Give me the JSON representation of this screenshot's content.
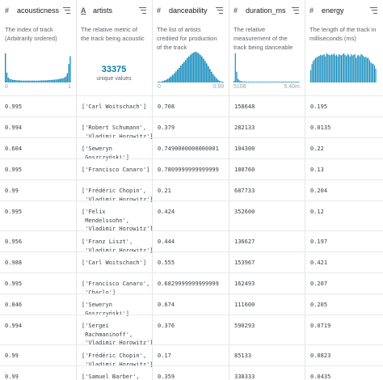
{
  "columns": [
    {
      "type_icon": "#",
      "title": "acousticness",
      "description": "The index of track (Arbitrarily ordered)",
      "axis_min": "0",
      "axis_max": "1"
    },
    {
      "type_icon": "A",
      "title": "artists",
      "description": "The relative metric of the track being acoustic",
      "unique_count": "33375",
      "unique_label": "unique values"
    },
    {
      "type_icon": "#",
      "title": "danceability",
      "description": "The list of artists credited for production of the track",
      "axis_min": "0",
      "axis_max": "0.99"
    },
    {
      "type_icon": "#",
      "title": "duration_ms",
      "description": "The relative measurement of the track being danceable",
      "axis_min": "5108",
      "axis_max": "5.40m"
    },
    {
      "type_icon": "#",
      "title": "energy",
      "description": "The length of the track in milliseconds (ms)",
      "axis_min": "",
      "axis_max": ""
    }
  ],
  "rows": [
    {
      "acousticness": "0.995",
      "artists": "['Carl Woitschach']",
      "danceability": "0.708",
      "duration_ms": "158648",
      "energy": "0.195"
    },
    {
      "acousticness": "0.994",
      "artists": "['Robert Schumann',\n 'Vladimir Horowitz']",
      "danceability": "0.379",
      "duration_ms": "282133",
      "energy": "0.0135"
    },
    {
      "acousticness": "0.604",
      "artists": "['Seweryn\n Goszczyński']",
      "danceability": "0.7490000000000001",
      "duration_ms": "104300",
      "energy": "0.22"
    },
    {
      "acousticness": "0.995",
      "artists": "['Francisco Canaro']",
      "danceability": "0.7809999999999999",
      "duration_ms": "180760",
      "energy": "0.13"
    },
    {
      "acousticness": "0.99",
      "artists": "['Frédéric Chopin',\n 'Vladimir Horowitz']",
      "danceability": "0.21",
      "duration_ms": "687733",
      "energy": "0.204"
    },
    {
      "acousticness": "0.995",
      "artists": "['Felix\n Mendelssohn',\n 'Vladimir Horowitz']",
      "danceability": "0.424",
      "duration_ms": "352600",
      "energy": "0.12"
    },
    {
      "acousticness": "0.956",
      "artists": "['Franz Liszt',\n 'Vladimir Horowitz']",
      "danceability": "0.444",
      "duration_ms": "136627",
      "energy": "0.197"
    },
    {
      "acousticness": "0.988",
      "artists": "['Carl Woitschach']",
      "danceability": "0.555",
      "duration_ms": "153967",
      "energy": "0.421"
    },
    {
      "acousticness": "0.995",
      "artists": "['Francisco Canaro',\n 'Charlo']",
      "danceability": "0.6829999999999999",
      "duration_ms": "162493",
      "energy": "0.207"
    },
    {
      "acousticness": "0.846",
      "artists": "['Seweryn\n Goszczyński']",
      "danceability": "0.674",
      "duration_ms": "111600",
      "energy": "0.205"
    },
    {
      "acousticness": "0.994",
      "artists": "['Sergei\n Rachmaninoff',\n 'Vladimir Horowitz']",
      "danceability": "0.376",
      "duration_ms": "590293",
      "energy": "0.0719"
    },
    {
      "acousticness": "0.99",
      "artists": "['Frédéric Chopin',\n 'Vladimir Horowitz']",
      "danceability": "0.17",
      "duration_ms": "85133",
      "energy": "0.0823"
    },
    {
      "acousticness": "0.99",
      "artists": "['Samuel Barber',\n 'Vladimir Horowitz']",
      "danceability": "0.359",
      "duration_ms": "338333",
      "energy": "0.0435"
    }
  ],
  "histograms": {
    "acousticness": [
      0.95,
      0.32,
      0.16,
      0.12,
      0.1,
      0.09,
      0.08,
      0.08,
      0.07,
      0.07,
      0.07,
      0.06,
      0.06,
      0.06,
      0.06,
      0.06,
      0.06,
      0.06,
      0.06,
      0.06,
      0.06,
      0.06,
      0.06,
      0.06,
      0.06,
      0.07,
      0.07,
      0.07,
      0.07,
      0.07,
      0.08,
      0.08,
      0.08,
      0.09,
      0.09,
      0.1,
      0.1,
      0.11,
      0.12,
      0.13,
      0.14,
      0.16,
      0.2,
      0.3,
      0.6,
      0.85
    ],
    "danceability": [
      0.01,
      0.02,
      0.03,
      0.05,
      0.07,
      0.09,
      0.12,
      0.16,
      0.2,
      0.25,
      0.3,
      0.36,
      0.42,
      0.48,
      0.55,
      0.61,
      0.67,
      0.73,
      0.8,
      0.85,
      0.9,
      0.95,
      0.98,
      1.0,
      0.98,
      0.95,
      0.9,
      0.85,
      0.78,
      0.7,
      0.62,
      0.53,
      0.44,
      0.35,
      0.27,
      0.2,
      0.14,
      0.09,
      0.05,
      0.03,
      0.01
    ],
    "duration_ms": [
      0.05,
      0.95,
      0.35,
      0.12,
      0.07,
      0.05,
      0.04,
      0.03,
      0.03,
      0.02,
      0.02,
      0.02,
      0.01,
      0.01,
      0.01,
      0.01,
      0.01,
      0.01,
      0.01,
      0.01,
      0.01,
      0.01,
      0.01,
      0.01,
      0.01,
      0.01,
      0.01,
      0.01,
      0.01,
      0.01,
      0.01,
      0.01,
      0.01,
      0.01,
      0.01,
      0.01,
      0.01,
      0.01,
      0.01,
      0.01,
      0.01,
      0.01,
      0.01,
      0.01,
      0.01,
      0.01,
      0.01,
      0.01,
      0.01,
      0.01
    ],
    "energy": [
      0.4,
      0.6,
      0.7,
      0.75,
      0.8,
      0.82,
      0.85,
      0.87,
      0.9,
      0.88,
      0.9,
      0.92,
      0.85,
      0.95,
      0.92,
      0.9,
      0.88,
      0.92,
      0.9,
      0.95,
      0.88,
      0.9,
      0.85,
      0.92,
      0.9,
      0.88,
      0.92,
      0.95,
      0.9,
      0.86,
      0.93,
      0.9,
      0.85,
      0.92,
      0.88,
      0.9,
      0.92,
      0.8,
      0.88,
      0.9,
      0.85,
      0.92,
      0.9,
      0.86,
      0.82,
      0.84,
      0.8,
      0.8,
      0.72,
      0.65,
      0.62,
      0.6,
      0.55,
      0.45
    ]
  },
  "colors": {
    "bar": "#1a8fbf",
    "accent_text": "#0f7aa3",
    "divider": "#e3e5e8"
  }
}
